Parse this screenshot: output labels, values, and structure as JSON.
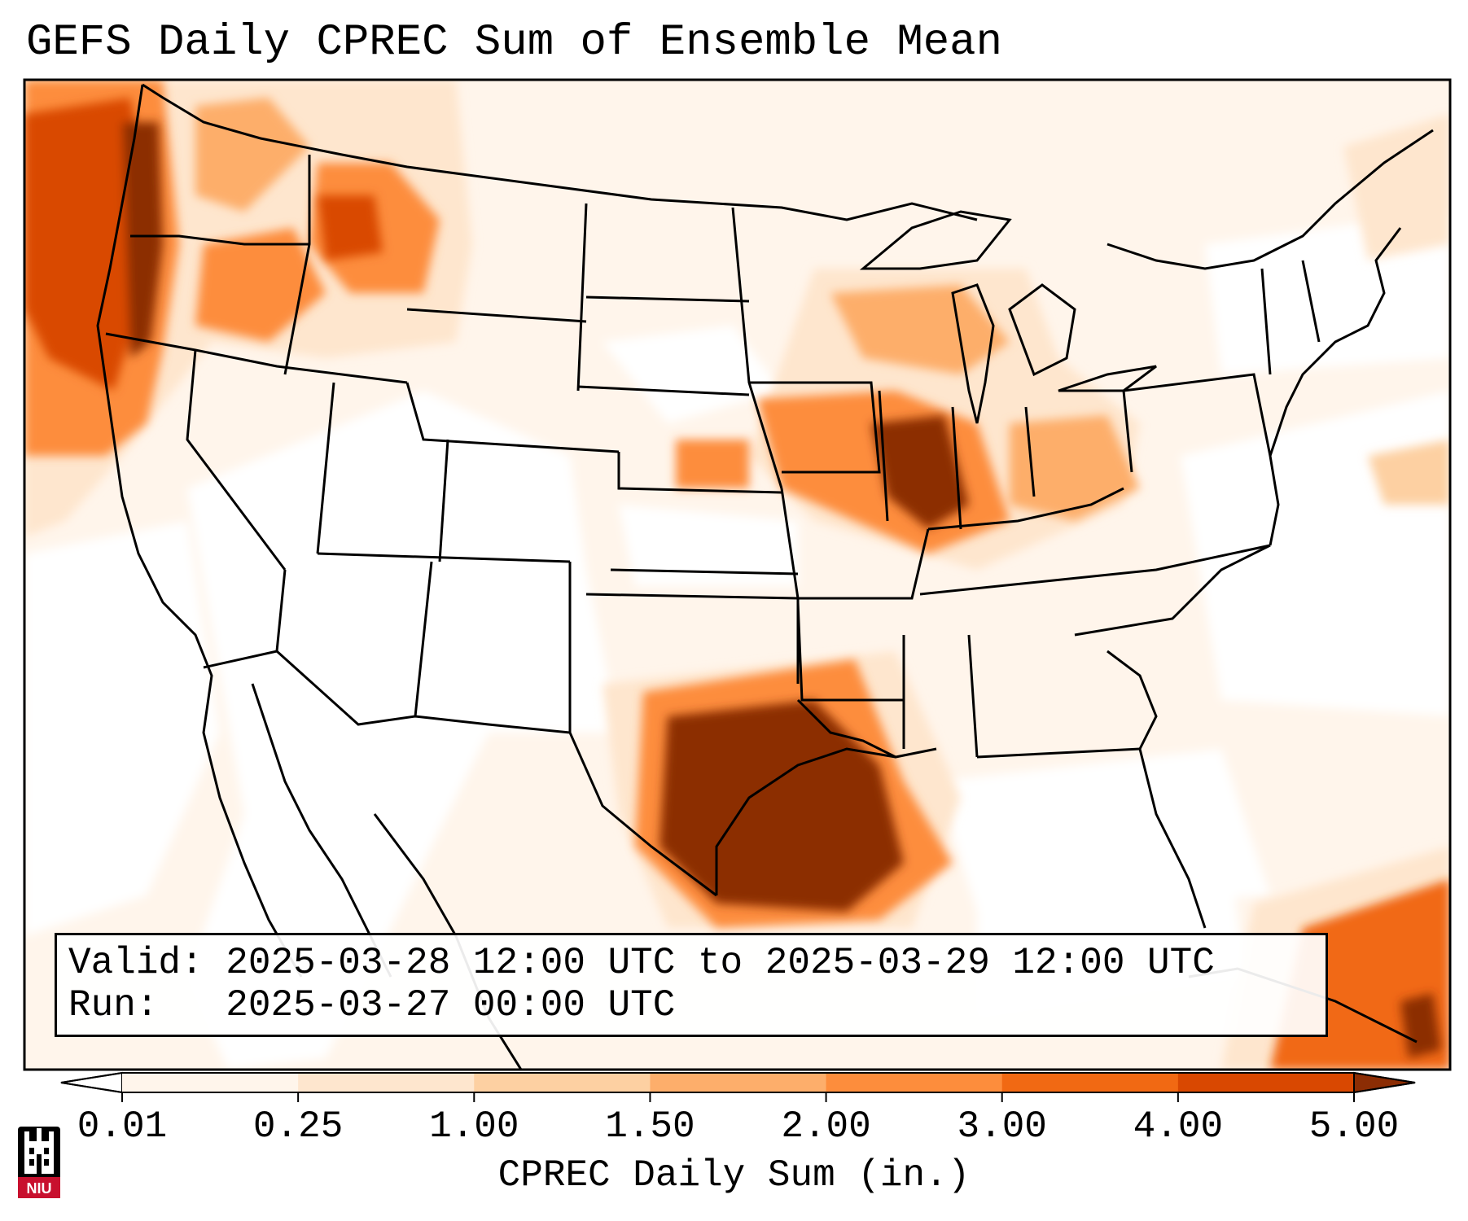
{
  "title": "GEFS Daily CPREC Sum of Ensemble Mean",
  "info": {
    "valid_label": "Valid:",
    "valid_value": "2025-03-28 12:00 UTC to 2025-03-29 12:00 UTC",
    "run_label": "Run:",
    "run_value": "2025-03-27 00:00 UTC"
  },
  "colorbar": {
    "label": "CPREC Daily Sum (in.)",
    "ticks": [
      "0.01",
      "0.25",
      "1.00",
      "1.50",
      "2.00",
      "3.00",
      "4.00",
      "5.00"
    ],
    "colors": [
      "#fff5eb",
      "#fee6ce",
      "#fdd0a2",
      "#fdae6b",
      "#fd8d3c",
      "#f16913",
      "#d94801",
      "#8c2d04"
    ],
    "extend": "both"
  },
  "logo": {
    "text": "NIU",
    "colors": [
      "#c8102e",
      "#000000",
      "#ffffff"
    ]
  },
  "precip_areas": [
    {
      "region": "Pacific Northwest coast",
      "level": 7
    },
    {
      "region": "Idaho / Montana ranges",
      "level": 5
    },
    {
      "region": "Illinois / Indiana",
      "level": 7
    },
    {
      "region": "Wisconsin / Michigan",
      "level": 4
    },
    {
      "region": "East Texas / Louisiana",
      "level": 7
    },
    {
      "region": "Cuba / Bahamas",
      "level": 5
    }
  ]
}
